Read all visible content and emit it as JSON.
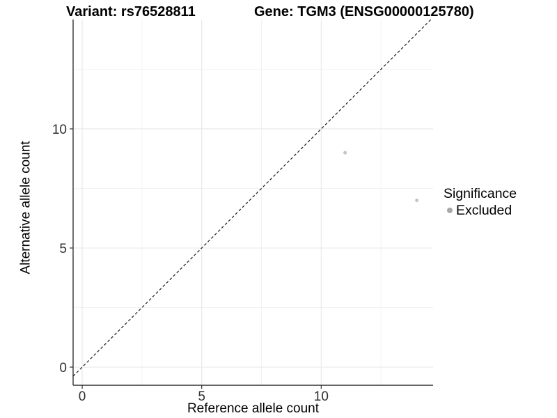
{
  "header": {
    "variant_title": "Variant: rs76528811",
    "gene_title": "Gene: TGM3 (ENSG00000125780)"
  },
  "chart_data": {
    "type": "scatter",
    "xlabel": "Reference allele count",
    "ylabel": "Alternative allele count",
    "x_ticks": [
      0,
      5,
      10
    ],
    "y_ticks": [
      0,
      5,
      10
    ],
    "xlim": [
      -0.38,
      14.68
    ],
    "ylim": [
      -0.76,
      14.59
    ],
    "grid": "major+minor on white background",
    "identity_line": {
      "equation": "y = x",
      "style": "dashed",
      "color": "#1a1a1a"
    },
    "series": [
      {
        "name": "Excluded",
        "point_color": "#c4c4c4",
        "points": [
          {
            "x": 11,
            "y": 9
          },
          {
            "x": 14,
            "y": 7
          }
        ]
      }
    ],
    "legend": {
      "title": "Significance",
      "position": "right",
      "items": [
        {
          "label": "Excluded",
          "color": "#a8a8a8"
        }
      ]
    },
    "colors": {
      "axis_line": "#333333",
      "grid_major": "#e7e7e7",
      "grid_minor": "#f2f2f2",
      "tick_text": "#303030"
    }
  }
}
